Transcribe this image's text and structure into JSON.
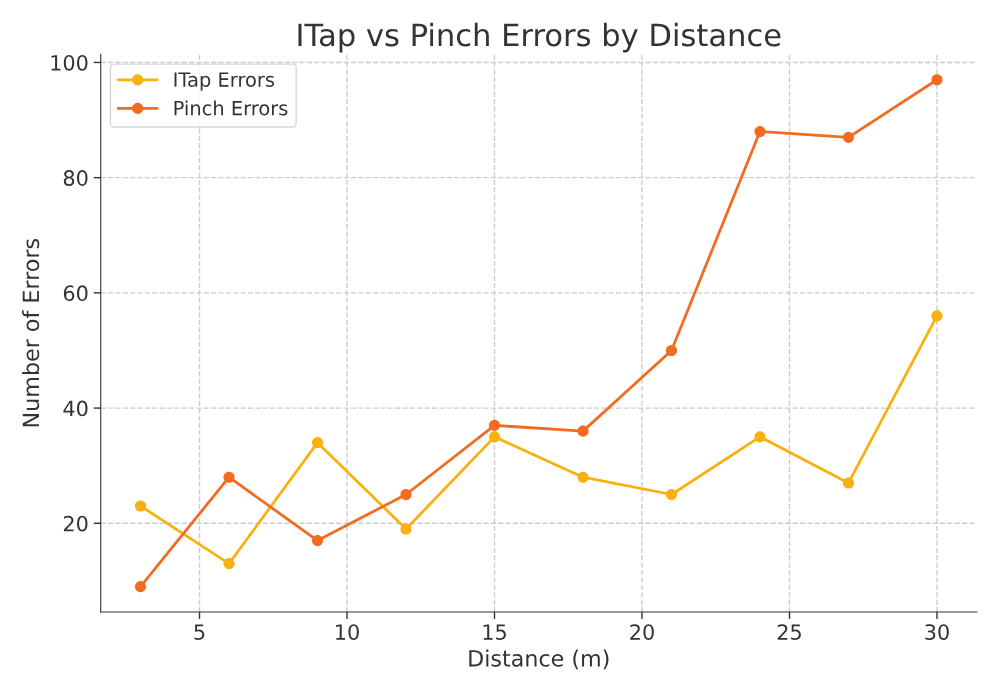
{
  "chart_data": {
    "type": "line",
    "title": "ITap vs Pinch Errors by Distance",
    "xlabel": "Distance (m)",
    "ylabel": "Number of Errors",
    "x": [
      3,
      6,
      9,
      12,
      15,
      18,
      21,
      24,
      27,
      30
    ],
    "series": [
      {
        "name": "ITap Errors",
        "color": "#fbb00f",
        "values": [
          23,
          13,
          34,
          19,
          35,
          28,
          25,
          35,
          27,
          56
        ]
      },
      {
        "name": "Pinch Errors",
        "color": "#f26b21",
        "values": [
          9,
          28,
          17,
          25,
          37,
          36,
          50,
          88,
          87,
          97
        ]
      }
    ],
    "xlim": [
      1.65,
      31.35
    ],
    "ylim": [
      4.6,
      101.4
    ],
    "xticks": [
      5,
      10,
      15,
      20,
      25,
      30
    ],
    "yticks": [
      20,
      40,
      60,
      80,
      100
    ],
    "grid": true,
    "legend": "top left",
    "marker": "circle",
    "line_style": "solid"
  }
}
